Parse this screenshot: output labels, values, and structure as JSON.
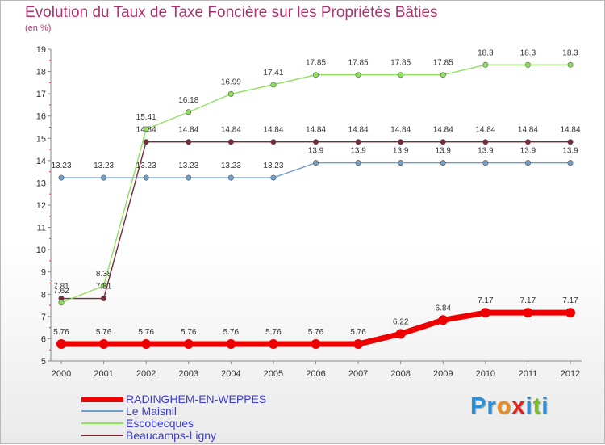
{
  "title": "Evolution du Taux de Taxe Foncière sur les Propriétés Bâties",
  "subtitle": "(en %)",
  "logo": {
    "letters": [
      "P",
      "r",
      "o",
      "x",
      "i",
      "t",
      "i"
    ],
    "colors": [
      "#2b8fd6",
      "#2b8fd6",
      "#f08a1d",
      "#e2231a",
      "#2b8fd6",
      "#7bbf2a",
      "#2b8fd6"
    ]
  },
  "chart_data": {
    "type": "line",
    "title": "Evolution du Taux de Taxe Foncière sur les Propriétés Bâties",
    "ylabel": "(en %)",
    "xlabel": "",
    "x": [
      "2000",
      "2001",
      "2002",
      "2003",
      "2004",
      "2005",
      "2006",
      "2007",
      "2008",
      "2009",
      "2010",
      "2011",
      "2012"
    ],
    "ylim": [
      5,
      19
    ],
    "yticks": [
      5,
      6,
      7,
      8,
      9,
      10,
      11,
      12,
      13,
      14,
      15,
      16,
      17,
      18,
      19
    ],
    "grid": false,
    "legend": "bottom-left",
    "series": [
      {
        "name": "RADINGHEM-EN-WEPPES",
        "color": "#ee0000",
        "values": [
          5.76,
          5.76,
          5.76,
          5.76,
          5.76,
          5.76,
          5.76,
          5.76,
          6.22,
          6.84,
          7.17,
          7.17,
          7.17
        ],
        "labels": [
          "5.76",
          "5.76",
          "5.76",
          "5.76",
          "5.76",
          "5.76",
          "5.76",
          "5.76",
          "6.22",
          "6.84",
          "7.17",
          "7.17",
          "7.17"
        ]
      },
      {
        "name": "Le Maisnil",
        "color": "#6fa0cc",
        "values": [
          13.23,
          13.23,
          13.23,
          13.23,
          13.23,
          13.23,
          13.9,
          13.9,
          13.9,
          13.9,
          13.9,
          13.9,
          13.9
        ],
        "labels": [
          "13.23",
          "13.23",
          "13.23",
          "13.23",
          "13.23",
          "13.23",
          "13.9",
          "13.9",
          "13.9",
          "13.9",
          "13.9",
          "13.9",
          "13.9"
        ]
      },
      {
        "name": "Escobecques",
        "color": "#90e060",
        "values": [
          7.62,
          8.38,
          15.41,
          16.18,
          16.99,
          17.41,
          17.85,
          17.85,
          17.85,
          17.85,
          18.3,
          18.3,
          18.3
        ],
        "labels": [
          "7.62",
          "8.38",
          "15.41",
          "16.18",
          "16.99",
          "17.41",
          "17.85",
          "17.85",
          "17.85",
          "17.85",
          "18.3",
          "18.3",
          "18.3"
        ]
      },
      {
        "name": "Beaucamps-Ligny",
        "color": "#7a2a35",
        "values": [
          7.81,
          7.81,
          14.84,
          14.84,
          14.84,
          14.84,
          14.84,
          14.84,
          14.84,
          14.84,
          14.84,
          14.84,
          14.84
        ],
        "labels": [
          "7.81",
          "7.81",
          "14.84",
          "14.84",
          "14.84",
          "14.84",
          "14.84",
          "14.84",
          "14.84",
          "14.84",
          "14.84",
          "14.84",
          "14.84"
        ]
      }
    ]
  }
}
